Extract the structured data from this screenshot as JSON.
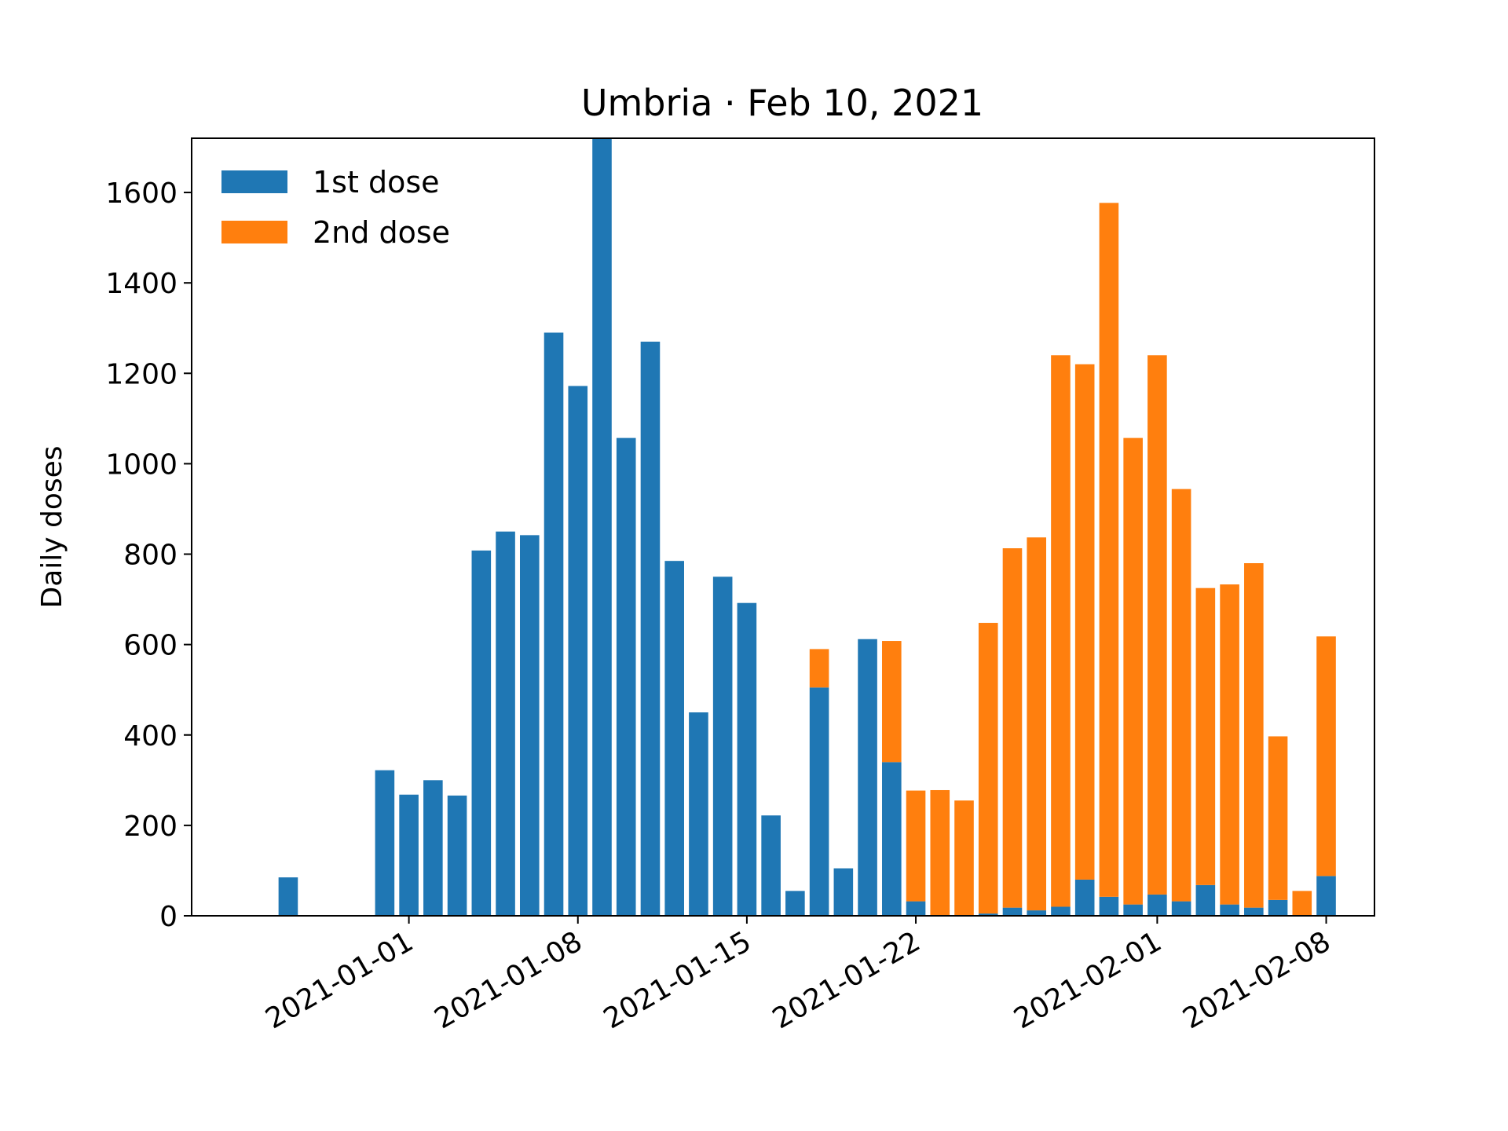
{
  "chart_data": {
    "type": "bar",
    "stacked": true,
    "title": "Umbria · Feb 10, 2021",
    "xlabel": "",
    "ylabel": "Daily doses",
    "ylim": [
      0,
      1720
    ],
    "xlim": [
      "2020-12-23",
      "2021-02-10"
    ],
    "yticks": [
      0,
      200,
      400,
      600,
      800,
      1000,
      1200,
      1400,
      1600
    ],
    "xticks": [
      "2021-01-01",
      "2021-01-08",
      "2021-01-15",
      "2021-01-22",
      "2021-02-01",
      "2021-02-08"
    ],
    "legend_position": "top-left",
    "grid": false,
    "colors": {
      "first": "#1f77b4",
      "second": "#ff7f0e"
    },
    "dates": [
      "2020-12-27",
      "2020-12-28",
      "2020-12-29",
      "2020-12-30",
      "2020-12-31",
      "2021-01-01",
      "2021-01-02",
      "2021-01-03",
      "2021-01-04",
      "2021-01-05",
      "2021-01-06",
      "2021-01-07",
      "2021-01-08",
      "2021-01-09",
      "2021-01-10",
      "2021-01-11",
      "2021-01-12",
      "2021-01-13",
      "2021-01-14",
      "2021-01-15",
      "2021-01-16",
      "2021-01-17",
      "2021-01-18",
      "2021-01-19",
      "2021-01-20",
      "2021-01-21",
      "2021-01-22",
      "2021-01-23",
      "2021-01-24",
      "2021-01-25",
      "2021-01-26",
      "2021-01-27",
      "2021-01-28",
      "2021-01-29",
      "2021-01-30",
      "2021-01-31",
      "2021-02-01",
      "2021-02-02",
      "2021-02-03",
      "2021-02-04",
      "2021-02-05",
      "2021-02-06",
      "2021-02-07",
      "2021-02-08"
    ],
    "series": [
      {
        "name": "1st dose",
        "values": [
          85,
          0,
          0,
          0,
          322,
          268,
          300,
          266,
          808,
          850,
          842,
          1290,
          1172,
          1720,
          1057,
          1270,
          785,
          450,
          750,
          692,
          222,
          55,
          505,
          105,
          612,
          340,
          32,
          0,
          0,
          5,
          18,
          12,
          20,
          80,
          42,
          25,
          47,
          32,
          68,
          25,
          18,
          35,
          0,
          88
        ]
      },
      {
        "name": "2nd dose",
        "values": [
          0,
          0,
          0,
          0,
          0,
          0,
          0,
          0,
          0,
          0,
          0,
          0,
          0,
          0,
          0,
          0,
          0,
          0,
          0,
          0,
          0,
          0,
          85,
          0,
          0,
          268,
          245,
          278,
          255,
          643,
          795,
          825,
          1220,
          1140,
          1535,
          1032,
          1193,
          912,
          657,
          708,
          762,
          362,
          55,
          530
        ]
      }
    ]
  }
}
